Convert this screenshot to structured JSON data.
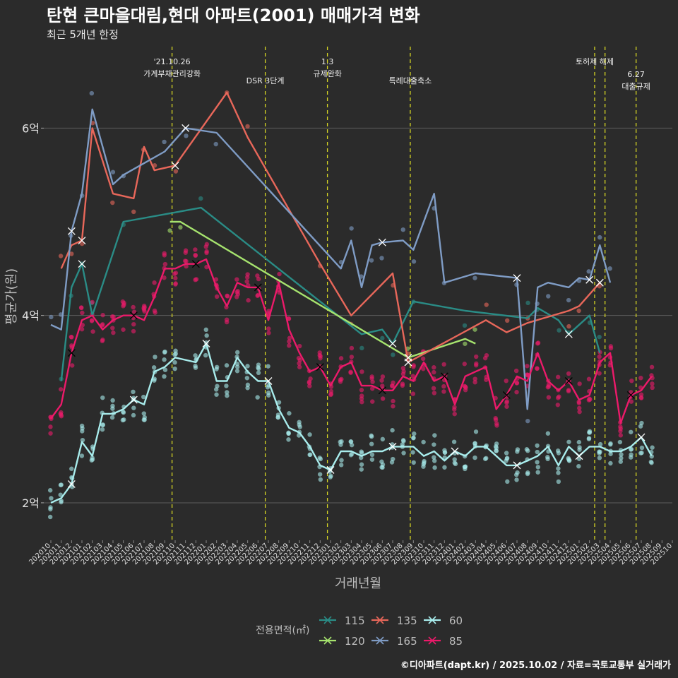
{
  "chart_data": {
    "type": "line",
    "title": "탄현 큰마을대림,현대 아파트(2001) 매매가격 변화",
    "subtitle": "최근 5개년 한정",
    "xlabel": "거래년월",
    "ylabel": "평균가(원)",
    "credit": "©디아파트(dapt.kr) / 2025.10.02 / 자료=국토교통부 실거래가",
    "legend_title": "전용면적(㎡)",
    "ylim": [
      1.6,
      6.9
    ],
    "yticks": [
      {
        "v": 2,
        "label": "2억"
      },
      {
        "v": 4,
        "label": "4억"
      },
      {
        "v": 6,
        "label": "6억"
      }
    ],
    "months": [
      "202010",
      "202011",
      "202012",
      "202101",
      "202102",
      "202103",
      "202104",
      "202105",
      "202106",
      "202107",
      "202108",
      "202109",
      "202110",
      "202111",
      "202112",
      "202201",
      "202202",
      "202203",
      "202204",
      "202205",
      "202206",
      "202207",
      "202208",
      "202209",
      "202210",
      "202211",
      "202212",
      "202301",
      "202302",
      "202303",
      "202304",
      "202305",
      "202306",
      "202307",
      "202308",
      "202309",
      "202310",
      "202311",
      "202312",
      "202401",
      "202402",
      "202403",
      "202404",
      "202405",
      "202406",
      "202407",
      "202408",
      "202409",
      "202410",
      "202411",
      "202412",
      "202501",
      "202502",
      "202503",
      "202504",
      "202505",
      "202506",
      "202507",
      "202508",
      "202509",
      "202510"
    ],
    "events": [
      {
        "x": 11.7,
        "line1": "'21.10.26",
        "line2": "가계부채관리강화"
      },
      {
        "x": 20.7,
        "line1": "",
        "line2": "DSR 3단계"
      },
      {
        "x": 26.7,
        "line1": "1.3",
        "line2": "규제완화"
      },
      {
        "x": 34.7,
        "line1": "",
        "line2": "특례대출축소"
      },
      {
        "x": 52.5,
        "line1": "토허제 해제",
        "line2": ""
      },
      {
        "x": 53.5,
        "line1": "",
        "line2": ""
      },
      {
        "x": 56.5,
        "line1": "6.27",
        "line2": "대출규제"
      }
    ],
    "series": [
      {
        "name": "115",
        "color": "#2a8c86",
        "points": [
          [
            1,
            3.3
          ],
          [
            2,
            4.3
          ],
          [
            3,
            4.55
          ],
          [
            4,
            4.0
          ],
          [
            7,
            5.0
          ],
          [
            14.5,
            5.15
          ],
          [
            30,
            3.8
          ],
          [
            32,
            3.85
          ],
          [
            33,
            3.7
          ],
          [
            35,
            4.15
          ],
          [
            40,
            4.05
          ],
          [
            46,
            3.97
          ],
          [
            47,
            4.08
          ],
          [
            49,
            3.95
          ],
          [
            50,
            3.8
          ],
          [
            52,
            4.0
          ],
          [
            53,
            3.6
          ]
        ]
      },
      {
        "name": "120",
        "color": "#a6e36e",
        "points": [
          [
            11.5,
            5.0
          ],
          [
            12.5,
            5.0
          ],
          [
            34.5,
            3.55
          ],
          [
            40,
            3.75
          ],
          [
            41,
            3.7
          ]
        ]
      },
      {
        "name": "135",
        "color": "#e8675a",
        "points": [
          [
            1,
            4.5
          ],
          [
            2,
            4.75
          ],
          [
            3,
            4.8
          ],
          [
            4,
            6.0
          ],
          [
            6,
            5.3
          ],
          [
            8,
            5.25
          ],
          [
            9,
            5.8
          ],
          [
            10,
            5.55
          ],
          [
            12,
            5.6
          ],
          [
            17,
            6.38
          ],
          [
            19,
            5.9
          ],
          [
            26,
            4.55
          ],
          [
            29,
            4.0
          ],
          [
            33,
            4.45
          ],
          [
            34.5,
            3.5
          ],
          [
            42,
            3.95
          ],
          [
            44,
            3.82
          ],
          [
            46,
            3.92
          ],
          [
            50,
            4.05
          ],
          [
            51,
            4.1
          ],
          [
            53,
            4.35
          ]
        ]
      },
      {
        "name": "165",
        "color": "#7f9cc5",
        "points": [
          [
            0,
            3.9
          ],
          [
            1,
            3.85
          ],
          [
            2,
            4.9
          ],
          [
            3,
            5.3
          ],
          [
            4,
            6.2
          ],
          [
            6,
            5.4
          ],
          [
            7,
            5.5
          ],
          [
            11,
            5.75
          ],
          [
            13,
            6.0
          ],
          [
            16,
            5.95
          ],
          [
            28,
            4.5
          ],
          [
            29,
            4.8
          ],
          [
            30,
            4.3
          ],
          [
            31,
            4.75
          ],
          [
            32,
            4.78
          ],
          [
            34,
            4.8
          ],
          [
            35,
            4.7
          ],
          [
            37,
            5.3
          ],
          [
            38,
            4.35
          ],
          [
            41,
            4.45
          ],
          [
            45,
            4.4
          ],
          [
            46,
            3.0
          ],
          [
            47,
            4.3
          ],
          [
            48,
            4.35
          ],
          [
            50,
            4.3
          ],
          [
            51,
            4.4
          ],
          [
            52,
            4.38
          ],
          [
            53,
            4.75
          ],
          [
            54,
            4.35
          ]
        ]
      },
      {
        "name": "60",
        "color": "#a8ecec",
        "points": [
          [
            0,
            2.0
          ],
          [
            1,
            2.05
          ],
          [
            2,
            2.2
          ],
          [
            3,
            2.65
          ],
          [
            4,
            2.5
          ],
          [
            5,
            2.95
          ],
          [
            6,
            2.95
          ],
          [
            7,
            3.0
          ],
          [
            8,
            3.1
          ],
          [
            9,
            3.05
          ],
          [
            10,
            3.4
          ],
          [
            11,
            3.45
          ],
          [
            12,
            3.55
          ],
          [
            14,
            3.5
          ],
          [
            15,
            3.7
          ],
          [
            16,
            3.3
          ],
          [
            17,
            3.3
          ],
          [
            18,
            3.55
          ],
          [
            19,
            3.4
          ],
          [
            20,
            3.3
          ],
          [
            21,
            3.3
          ],
          [
            22,
            3.0
          ],
          [
            23,
            2.8
          ],
          [
            24,
            2.75
          ],
          [
            25,
            2.6
          ],
          [
            26,
            2.4
          ],
          [
            27,
            2.35
          ],
          [
            28,
            2.55
          ],
          [
            29,
            2.55
          ],
          [
            30,
            2.5
          ],
          [
            31,
            2.55
          ],
          [
            32,
            2.55
          ],
          [
            33,
            2.6
          ],
          [
            34,
            2.6
          ],
          [
            35,
            2.6
          ],
          [
            36,
            2.5
          ],
          [
            37,
            2.55
          ],
          [
            38,
            2.45
          ],
          [
            39,
            2.55
          ],
          [
            40,
            2.5
          ],
          [
            41,
            2.6
          ],
          [
            42,
            2.6
          ],
          [
            43,
            2.5
          ],
          [
            44,
            2.4
          ],
          [
            45,
            2.4
          ],
          [
            46,
            2.45
          ],
          [
            47,
            2.5
          ],
          [
            48,
            2.6
          ],
          [
            49,
            2.4
          ],
          [
            50,
            2.6
          ],
          [
            51,
            2.5
          ],
          [
            52,
            2.6
          ],
          [
            53,
            2.6
          ],
          [
            54,
            2.55
          ],
          [
            55,
            2.55
          ],
          [
            56,
            2.6
          ],
          [
            57,
            2.7
          ],
          [
            58,
            2.5
          ]
        ]
      },
      {
        "name": "85",
        "color": "#ec1a6a",
        "points": [
          [
            0,
            2.9
          ],
          [
            1,
            3.05
          ],
          [
            2,
            3.6
          ],
          [
            3,
            3.95
          ],
          [
            4,
            4.0
          ],
          [
            5,
            3.85
          ],
          [
            6,
            3.95
          ],
          [
            7,
            4.0
          ],
          [
            8,
            4.0
          ],
          [
            9,
            3.95
          ],
          [
            10,
            4.2
          ],
          [
            11,
            4.5
          ],
          [
            12,
            4.5
          ],
          [
            13,
            4.55
          ],
          [
            14,
            4.55
          ],
          [
            15,
            4.6
          ],
          [
            16,
            4.3
          ],
          [
            17,
            4.1
          ],
          [
            18,
            4.35
          ],
          [
            19,
            4.3
          ],
          [
            20,
            4.3
          ],
          [
            21,
            3.95
          ],
          [
            22,
            4.35
          ],
          [
            23,
            3.85
          ],
          [
            24,
            3.6
          ],
          [
            25,
            3.4
          ],
          [
            26,
            3.45
          ],
          [
            27,
            3.25
          ],
          [
            28,
            3.45
          ],
          [
            29,
            3.5
          ],
          [
            30,
            3.25
          ],
          [
            31,
            3.25
          ],
          [
            32,
            3.2
          ],
          [
            33,
            3.2
          ],
          [
            34,
            3.35
          ],
          [
            35,
            3.3
          ],
          [
            36,
            3.5
          ],
          [
            37,
            3.3
          ],
          [
            38,
            3.35
          ],
          [
            39,
            3.05
          ],
          [
            40,
            3.35
          ],
          [
            41,
            3.4
          ],
          [
            42,
            3.45
          ],
          [
            43,
            3.0
          ],
          [
            44,
            3.15
          ],
          [
            45,
            3.35
          ],
          [
            46,
            3.3
          ],
          [
            47,
            3.6
          ],
          [
            48,
            3.3
          ],
          [
            49,
            3.2
          ],
          [
            50,
            3.3
          ],
          [
            51,
            3.1
          ],
          [
            52,
            3.15
          ],
          [
            53,
            3.5
          ],
          [
            54,
            3.6
          ],
          [
            55,
            2.85
          ],
          [
            56,
            3.15
          ],
          [
            57,
            3.2
          ],
          [
            58,
            3.35
          ]
        ]
      }
    ]
  }
}
